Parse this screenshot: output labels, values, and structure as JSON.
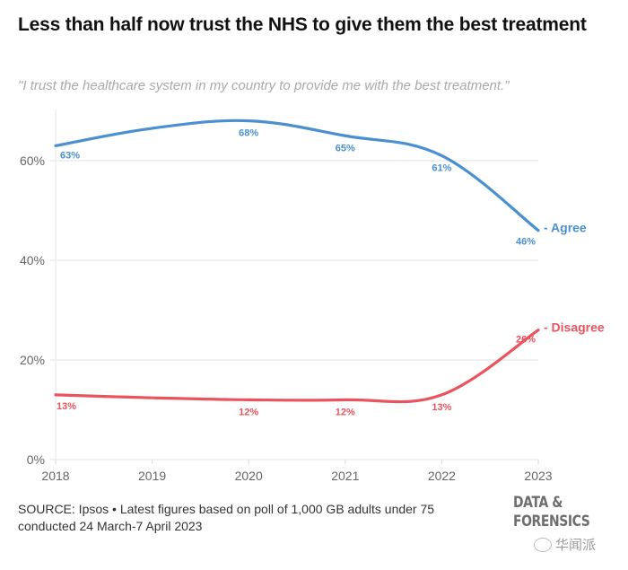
{
  "header": {
    "title": "Less than half now trust the NHS to give them the best treatment",
    "subtitle": "\"I trust the healthcare system in my country to provide me with the best treatment.\""
  },
  "footer": {
    "source": "SOURCE: Ipsos • Latest figures based on poll of 1,000 GB adults under 75 conducted 24 March-7 April 2023",
    "logo_line1": "DATA &",
    "logo_line2": "FORENSICS",
    "watermark": "华闻派"
  },
  "chart_data": {
    "type": "line",
    "title": "Less than half now trust the NHS to give them the best treatment",
    "subtitle": "\"I trust the healthcare system in my country to provide me with the best treatment.\"",
    "xlabel": "",
    "ylabel": "",
    "x": [
      2018,
      2019,
      2020,
      2021,
      2022,
      2023
    ],
    "x_ticks": [
      "2018",
      "2019",
      "2020",
      "2021",
      "2022",
      "2023"
    ],
    "y_ticks": [
      "0%",
      "20%",
      "40%",
      "60%"
    ],
    "y_tick_values": [
      0,
      20,
      40,
      60
    ],
    "ylim": [
      0,
      70
    ],
    "xlim": [
      2018,
      2023
    ],
    "grid": true,
    "legend": "inline-right",
    "series": [
      {
        "name": "Agree",
        "label": "- Agree",
        "color": "#4a90d0",
        "values": [
          63,
          66.5,
          68,
          65,
          61,
          46
        ],
        "labeled_points": [
          {
            "x": 2018,
            "y": 63,
            "label": "63%"
          },
          {
            "x": 2020,
            "y": 68,
            "label": "68%"
          },
          {
            "x": 2021,
            "y": 65,
            "label": "65%"
          },
          {
            "x": 2022,
            "y": 61,
            "label": "61%"
          },
          {
            "x": 2023,
            "y": 46,
            "label": "46%"
          }
        ]
      },
      {
        "name": "Disagree",
        "label": "- Disagree",
        "color": "#e9545e",
        "values": [
          13,
          12.4,
          12,
          12,
          13,
          26
        ],
        "labeled_points": [
          {
            "x": 2018,
            "y": 13,
            "label": "13%"
          },
          {
            "x": 2020,
            "y": 12,
            "label": "12%"
          },
          {
            "x": 2021,
            "y": 12,
            "label": "12%"
          },
          {
            "x": 2022,
            "y": 13,
            "label": "13%"
          },
          {
            "x": 2023,
            "y": 26,
            "label": "26%"
          }
        ]
      }
    ]
  }
}
